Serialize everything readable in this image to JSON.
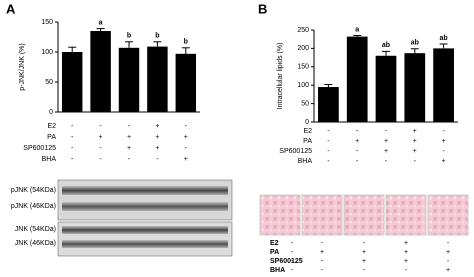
{
  "chart_data": [
    {
      "type": "bar",
      "panel": "A",
      "ylabel": "p-JNK/JNK (%)",
      "ylim": [
        0,
        150
      ],
      "yticks": [
        0,
        50,
        100,
        150
      ],
      "series": [
        {
          "color": "#000000",
          "values": [
            100,
            135,
            107,
            109,
            97
          ],
          "errors": [
            8,
            4,
            10,
            8,
            10
          ],
          "annotations": [
            null,
            "a",
            "b",
            "b",
            "b"
          ]
        }
      ],
      "treatments": [
        {
          "name": "E2",
          "signs": [
            "-",
            "-",
            "-",
            "+",
            "-"
          ]
        },
        {
          "name": "PA",
          "signs": [
            "-",
            "+",
            "+",
            "+",
            "+"
          ]
        },
        {
          "name": "SP600125",
          "signs": [
            "-",
            "-",
            "+",
            "+",
            "-"
          ]
        },
        {
          "name": "BHA",
          "signs": [
            "-",
            "-",
            "-",
            "-",
            "+"
          ]
        }
      ]
    },
    {
      "type": "bar",
      "panel": "B",
      "ylabel": "Intracellular lipids (%)",
      "ylim": [
        0,
        250
      ],
      "yticks": [
        0,
        50,
        100,
        150,
        200,
        250
      ],
      "series": [
        {
          "color": "#000000",
          "values": [
            95,
            232,
            180,
            187,
            200
          ],
          "errors": [
            7,
            3,
            12,
            12,
            12
          ],
          "annotations": [
            null,
            "a",
            "ab",
            "ab",
            "ab"
          ]
        }
      ],
      "treatments": [
        {
          "name": "E2",
          "signs": [
            "-",
            "-",
            "-",
            "+",
            "-"
          ]
        },
        {
          "name": "PA",
          "signs": [
            "-",
            "+",
            "+",
            "+",
            "+"
          ]
        },
        {
          "name": "SP600125",
          "signs": [
            "-",
            "-",
            "+",
            "+",
            "-"
          ]
        },
        {
          "name": "BHA",
          "signs": [
            "-",
            "-",
            "-",
            "-",
            "+"
          ]
        }
      ]
    }
  ],
  "blots": {
    "labels": [
      "pJNK (54KDa)",
      "pJNK (46KDa)",
      "JNK (54KDa)",
      "JNK (46KDa)"
    ]
  }
}
